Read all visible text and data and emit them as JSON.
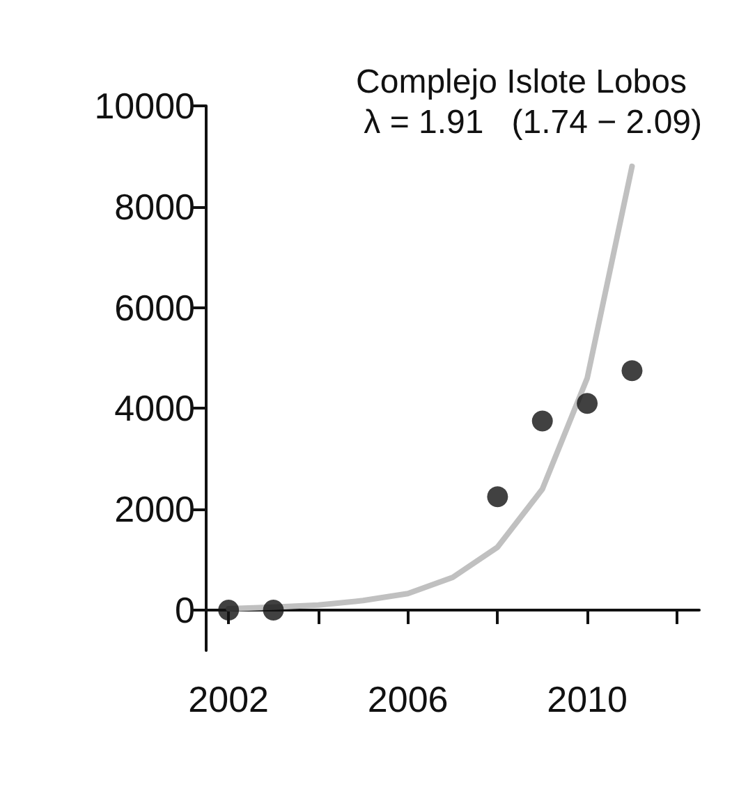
{
  "chart_data": {
    "type": "scatter",
    "title": "Complejo Islote Lobos",
    "annotations": [
      "λ = 1.91   (1.74 − 2.09)"
    ],
    "series": [
      {
        "color": "#111111",
        "x": [
          2002,
          2003,
          2008,
          2009,
          2010,
          2011
        ],
        "values": [
          0,
          0,
          2250,
          3750,
          4100,
          4750
        ]
      },
      {
        "type": "line",
        "color": "#c0c0c0",
        "marker": "none",
        "x": [
          2002,
          2003,
          2004,
          2005,
          2006,
          2007,
          2008,
          2009,
          2010,
          2011
        ],
        "values": [
          30,
          60,
          100,
          190,
          330,
          650,
          1250,
          2400,
          4600,
          8800
        ]
      }
    ],
    "xlim": [
      2001.5,
      2012.5
    ],
    "xticks": [
      2002,
      {
        "value": 2004,
        "label": null
      },
      2006,
      {
        "value": 2008,
        "label": null
      },
      2010,
      {
        "value": 2012,
        "label": null
      }
    ],
    "ylim": [
      -800,
      10000
    ],
    "yticks": [
      0,
      2000,
      4000,
      6000,
      8000,
      10000
    ],
    "grid": false,
    "marker": "circle"
  }
}
